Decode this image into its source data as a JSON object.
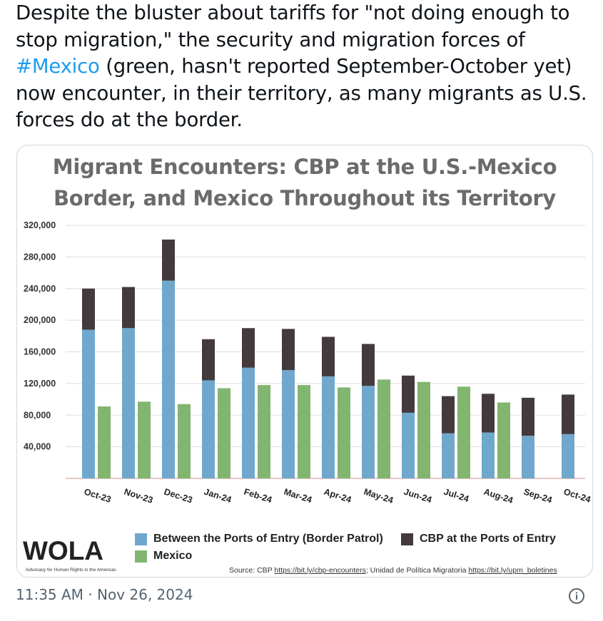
{
  "tweet": {
    "text_part1": "Despite the bluster about tariffs for \"not doing enough to stop migration,\" the security and migration forces of ",
    "hashtag": "#Mexico",
    "text_part2": " (green, hasn't reported September-October yet) now encounter, in their territory, as many migrants as U.S. forces do at the border.",
    "timestamp": "11:35 AM · Nov 26, 2024"
  },
  "image": {
    "logo_text": "WOLA",
    "logo_tagline": "Advocacy for Human Rights in the Americas",
    "source_prefix": "Source: CBP ",
    "source_link1": "https://bit.ly/cbp-encounters",
    "source_mid": "; Unidad de Política Migratoria ",
    "source_link2": "https://bit.ly/upm_boletines"
  },
  "colors": {
    "between_ports": "#6fa8cc",
    "ports_of_entry": "#443a3c",
    "mexico": "#82b56f",
    "title_gray": "#6b6b6b",
    "link_blue": "#1d9bf0"
  },
  "icons": {
    "info": "info-circle-icon"
  },
  "chart_data": {
    "type": "bar",
    "title_line1": "Migrant Encounters: CBP at the U.S.-Mexico",
    "title_line2": "Border, and Mexico Throughout its Territory",
    "categories": [
      "Oct-23",
      "Nov-23",
      "Dec-23",
      "Jan-24",
      "Feb-24",
      "Mar-24",
      "Apr-24",
      "May-24",
      "Jun-24",
      "Jul-24",
      "Aug-24",
      "Sep-24",
      "Oct-24"
    ],
    "series": [
      {
        "name": "Between the Ports of Entry (Border Patrol)",
        "stack": "CBP",
        "values": [
          188000,
          190000,
          250000,
          124000,
          140000,
          137000,
          129000,
          117000,
          83000,
          57000,
          58000,
          54000,
          56000
        ]
      },
      {
        "name": "CBP at the Ports of Entry",
        "stack": "CBP",
        "values": [
          52000,
          52000,
          52000,
          52000,
          50000,
          52000,
          50000,
          53000,
          47000,
          47000,
          49000,
          48000,
          50000
        ]
      },
      {
        "name": "Mexico",
        "stack": "Mexico",
        "values": [
          91000,
          97000,
          94000,
          114000,
          118000,
          118000,
          115000,
          125000,
          122000,
          116000,
          96000,
          null,
          null
        ]
      }
    ],
    "ylim": [
      0,
      320000
    ],
    "yticks": [
      "40,000",
      "80,000",
      "120,000",
      "160,000",
      "200,000",
      "240,000",
      "280,000",
      "320,000"
    ],
    "ytick_values": [
      40000,
      80000,
      120000,
      160000,
      200000,
      240000,
      280000,
      320000
    ],
    "legend_placement": "bottom",
    "grid": true
  }
}
